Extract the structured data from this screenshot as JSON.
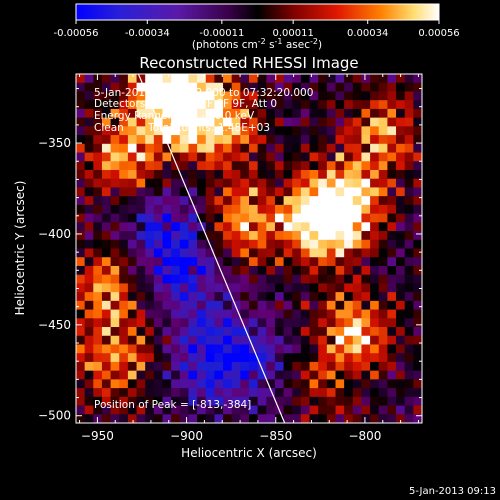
{
  "chart_data": {
    "type": "heatmap",
    "title": "Reconstructed RHESSI Image",
    "xlabel": "Heliocentric X (arcsec)",
    "ylabel": "Heliocentric Y (arcsec)",
    "xlim": [
      -962,
      -768
    ],
    "ylim": [
      -504,
      -312
    ],
    "x_ticks": [
      -950,
      -900,
      -850,
      -800
    ],
    "y_ticks": [
      -500,
      -450,
      -400,
      -350
    ],
    "colorbar": {
      "min": -0.00056,
      "max": 0.00056,
      "ticks": [
        "-0.00056",
        "-0.00034",
        "-0.00011",
        "0.00011",
        "0.00034",
        "0.00056"
      ],
      "units_parts": [
        "(photons cm",
        "-2",
        " s",
        "-1",
        " asec",
        "-2",
        ")"
      ],
      "colors": {
        "negative": [
          "#0000ff",
          "#2020d0",
          "#5010a0",
          "#600070",
          "#300040",
          "#000000"
        ],
        "positive": [
          "#000000",
          "#700000",
          "#d01000",
          "#ff7000",
          "#ffd060",
          "#ffffff"
        ]
      }
    },
    "annotations": {
      "time_range": "5-Jan-2013 07:31:32.000 to 07:32:20.000",
      "detectors": "Detectors: 3F 5F 6F 7F 8F 9F, Att 0",
      "energy_range": "Energy Range: 25.0 - 50.0 keV",
      "method": "Clean",
      "total_counts": "Total counts: 1.48E+03",
      "peak": "Position of Peak = [-813,-384]"
    },
    "limb_line": [
      [
        -927,
        -312
      ],
      [
        -845,
        -504
      ]
    ],
    "bright_regions": [
      {
        "x": -905,
        "y": -330,
        "level": 0.9
      },
      {
        "x": -880,
        "y": -340,
        "level": 0.8
      },
      {
        "x": -870,
        "y": -395,
        "level": 0.85
      },
      {
        "x": -812,
        "y": -384,
        "level": 1.0
      },
      {
        "x": -825,
        "y": -395,
        "level": 0.9
      },
      {
        "x": -945,
        "y": -430,
        "level": 0.75
      },
      {
        "x": -940,
        "y": -470,
        "level": 0.7
      },
      {
        "x": -805,
        "y": -455,
        "level": 0.85
      },
      {
        "x": -830,
        "y": -490,
        "level": 0.6
      },
      {
        "x": -790,
        "y": -345,
        "level": 0.7
      },
      {
        "x": -935,
        "y": -360,
        "level": 0.8
      },
      {
        "x": -915,
        "y": -315,
        "level": 0.7
      },
      {
        "x": -860,
        "y": -500,
        "level": 0.5
      }
    ],
    "dark_regions": [
      {
        "x": -900,
        "y": -420,
        "level": -0.6
      },
      {
        "x": -880,
        "y": -470,
        "level": -0.8
      },
      {
        "x": -850,
        "y": -495,
        "level": -0.7
      },
      {
        "x": -915,
        "y": -395,
        "level": -0.5
      }
    ]
  },
  "footer": {
    "timestamp": "5-Jan-2013 09:13"
  }
}
